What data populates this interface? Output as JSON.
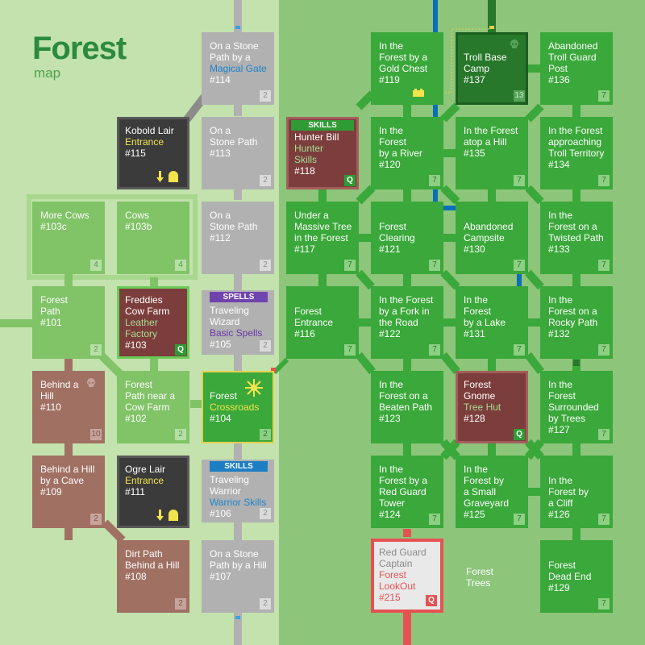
{
  "map": {
    "title": "Forest",
    "subtitle": "map"
  },
  "free_labels": {
    "forest_trees": "Forest\nTrees"
  },
  "tiles": {
    "r114": {
      "title": "On a Stone\nPath by a",
      "sub": "Magical Gate",
      "num": "#114",
      "badge": "2"
    },
    "r115": {
      "title": "Kobold Lair",
      "sub": "Entrance",
      "num": "#115"
    },
    "r113": {
      "title": "On a\nStone Path",
      "num": "#113",
      "badge": "2"
    },
    "r103c": {
      "title": "More Cows",
      "num": "#103c",
      "badge": "4"
    },
    "r103b": {
      "title": "Cows",
      "num": "#103b",
      "badge": "4"
    },
    "r112": {
      "title": "On a\nStone Path",
      "num": "#112",
      "badge": "2"
    },
    "r101": {
      "title": "Forest\nPath",
      "num": "#101",
      "badge": "2"
    },
    "r103": {
      "title": "Freddies\nCow Farm",
      "sub": "Leather\nFactory",
      "num": "#103",
      "badge": "Q"
    },
    "r105": {
      "label": "SPELLS",
      "title": "Traveling\nWizard",
      "sub": "Basic Spells",
      "num": "#105",
      "badge": "2"
    },
    "r110": {
      "title": "Behind a\nHill",
      "num": "#110",
      "badge": "10"
    },
    "r102": {
      "title": "Forest\nPath near a\nCow Farm",
      "num": "#102",
      "badge": "2"
    },
    "r104": {
      "title": "Forest",
      "sub": "Crossroads",
      "num": "#104",
      "badge": "2"
    },
    "r109": {
      "title": "Behind a Hill\nby a Cave",
      "num": "#109",
      "badge": "2"
    },
    "r111": {
      "title": "Ogre Lair",
      "sub": "Entrance",
      "num": "#111"
    },
    "r106": {
      "label": "SKILLS",
      "title": "Traveling\nWarrior",
      "sub": "Warrior Skills",
      "num": "#106",
      "badge": "2"
    },
    "r108": {
      "title": "Dirt Path\nBehind a Hill",
      "num": "#108",
      "badge": "2"
    },
    "r107": {
      "title": "On a Stone\nPath by a Hill",
      "num": "#107",
      "badge": "2"
    },
    "r119": {
      "title": "In the\nForest by a\nGold Chest",
      "num": "#119"
    },
    "r137": {
      "title": "Troll Base\nCamp",
      "num": "#137",
      "badge": "13"
    },
    "r136": {
      "title": "Abandoned\nTroll Guard\nPost",
      "num": "#136",
      "badge": "7"
    },
    "r118": {
      "label": "SKILLS",
      "title": "Hunter Bill",
      "sub": "Hunter\nSkills",
      "num": "#118",
      "badge": "Q"
    },
    "r120": {
      "title": "In the\nForest\nby a River",
      "num": "#120",
      "badge": "7"
    },
    "r135": {
      "title": "In the Forest\natop a Hill",
      "num": "#135",
      "badge": "7"
    },
    "r134": {
      "title": "In the Forest\napproaching\nTroll Territory",
      "num": "#134",
      "badge": "7"
    },
    "r117": {
      "title": "Under a\nMassive Tree\nin the Forest",
      "num": "#117",
      "badge": "7"
    },
    "r121": {
      "title": "Forest\nClearing",
      "num": "#121",
      "badge": "7"
    },
    "r130": {
      "title": "Abandoned\nCampsite",
      "num": "#130",
      "badge": "7"
    },
    "r133": {
      "title": "In the\nForest on a\nTwisted Path",
      "num": "#133",
      "badge": "7"
    },
    "r116": {
      "title": "Forest\nEntrance",
      "num": "#116",
      "badge": "7"
    },
    "r122": {
      "title": "In the Forest\nby a Fork in\nthe Road",
      "num": "#122",
      "badge": "7"
    },
    "r131": {
      "title": "In the\nForest\nby a Lake",
      "num": "#131",
      "badge": "7"
    },
    "r132": {
      "title": "In the\nForest on a\nRocky Path",
      "num": "#132",
      "badge": "7"
    },
    "r123": {
      "title": "In the\nForest on a\nBeaten Path",
      "num": "#123",
      "badge": "7"
    },
    "r128": {
      "title": "Forest\nGnome",
      "sub": "Tree Hut",
      "num": "#128",
      "badge": "Q"
    },
    "r127": {
      "title": "In the\nForest\nSurrounded\nby Trees",
      "num": "#127",
      "badge": "7"
    },
    "r124": {
      "title": "In the\nForest by a\nRed Guard\nTower",
      "num": "#124",
      "badge": "7"
    },
    "r125": {
      "title": "In the\nForest by\na Small\nGraveyard",
      "num": "#125",
      "badge": "7"
    },
    "r126": {
      "title": "In the\nForest by\na Cliff",
      "num": "#126",
      "badge": "7"
    },
    "r215": {
      "title": "Red Guard\nCaptain",
      "sub": "Forest\nLookOut",
      "num": "#215",
      "badge": "Q"
    },
    "r129": {
      "title": "Forest\nDead End",
      "num": "#129",
      "badge": "7"
    }
  },
  "colors": {
    "bg_left": "#c3e2ad",
    "bg_right": "#8dc57a",
    "title": "#2b8a3e",
    "path_grey": "#b1b1b1",
    "path_green": "#3aa83a",
    "path_lgreen": "#81c367",
    "path_brown": "#a07063",
    "river_blue": "#0d6fb8",
    "guard_red": "#e55252",
    "crossroads_yellow": "#f3e44e"
  },
  "icons": {
    "entrance": "down-arrow-and-door-icon",
    "danger": "skull-icon",
    "treasure": "chest-icon",
    "crossroads": "star-burst-icon"
  }
}
